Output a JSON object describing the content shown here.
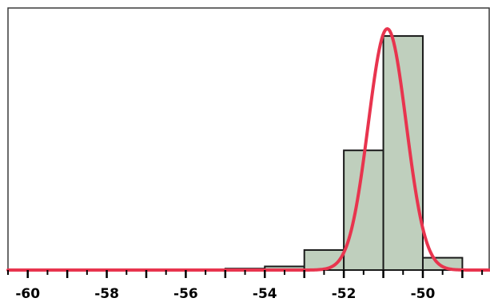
{
  "chart_data": {
    "type": "bar",
    "title": "",
    "xlabel": "",
    "ylabel": "",
    "xlim": [
      -60.5,
      -48.3
    ],
    "ylim": [
      0,
      1
    ],
    "bin_width": 1,
    "bins": [
      {
        "start": -55,
        "end": -54,
        "value": 0.006
      },
      {
        "start": -54,
        "end": -53,
        "value": 0.015
      },
      {
        "start": -53,
        "end": -52,
        "value": 0.083
      },
      {
        "start": -52,
        "end": -51,
        "value": 0.496
      },
      {
        "start": -51,
        "end": -50,
        "value": 0.97
      },
      {
        "start": -50,
        "end": -49,
        "value": 0.051
      }
    ],
    "fitted_curve": {
      "type": "normal",
      "mean": -50.9,
      "sd": 0.48,
      "peak": 1.0
    },
    "x_ticks": [
      -60,
      -58,
      -56,
      -54,
      -52,
      -50
    ],
    "x_tick_labels": [
      "-60",
      "-58",
      "-56",
      "-54",
      "-52",
      "-50"
    ],
    "minor_tick_step": 0.5,
    "grid": false,
    "legend": "none",
    "colors": {
      "bar_fill": "#bfcfbd",
      "bar_edge": "#1a1a1a",
      "curve": "#e8344e",
      "frame": "#3a3a3a",
      "background": "#ffffff"
    }
  }
}
